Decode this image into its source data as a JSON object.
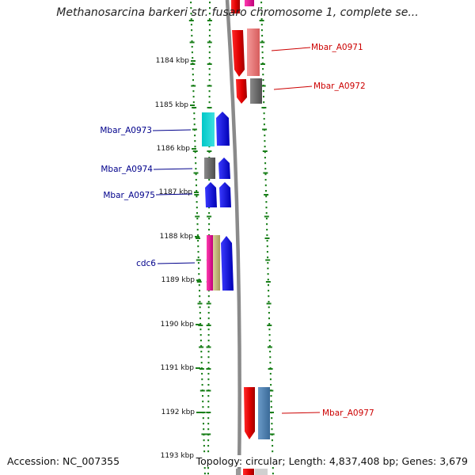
{
  "title": "Methanosarcina barkeri str. fusaro chromosome 1, complete se...",
  "footer": {
    "accession": "Accession: NC_007355",
    "summary": "Topology: circular; Length: 4,837,408 bp; Genes: 3,679"
  },
  "kbp_labels": [
    "1184 kbp",
    "1185 kbp",
    "1186 kbp",
    "1187 kbp",
    "1188 kbp",
    "1189 kbp",
    "1190 kbp",
    "1191 kbp",
    "1192 kbp",
    "1193 kbp"
  ],
  "gene_labels": {
    "left": [
      "Mbar_A0973",
      "Mbar_A0974",
      "Mbar_A0975",
      "cdc6"
    ],
    "right": [
      "Mbar_A0971",
      "Mbar_A0972",
      "Mbar_A0977"
    ]
  },
  "colors": {
    "left_label": "#00008b",
    "right_label": "#cc0000",
    "ruler_dots": "#1a7f1a",
    "backbone": "#808080"
  }
}
